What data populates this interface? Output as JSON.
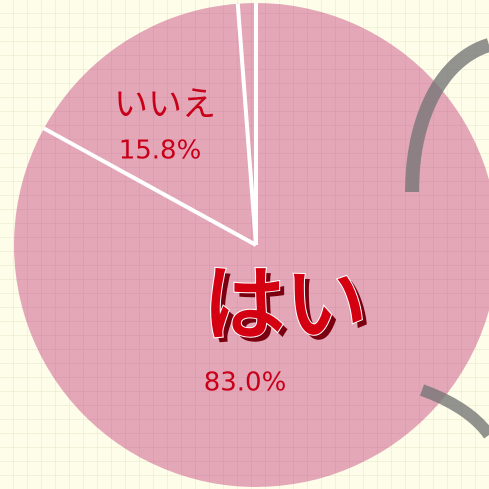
{
  "chart_data": {
    "type": "pie",
    "categories": [
      "はい",
      "いいえ",
      null
    ],
    "values": [
      83.0,
      15.8,
      1.2
    ],
    "value_labels": [
      "83.0%",
      "15.8%",
      null
    ],
    "colors": [
      "#e3a7b7",
      "#e3a7b7",
      "#e3a7b7"
    ]
  }
}
